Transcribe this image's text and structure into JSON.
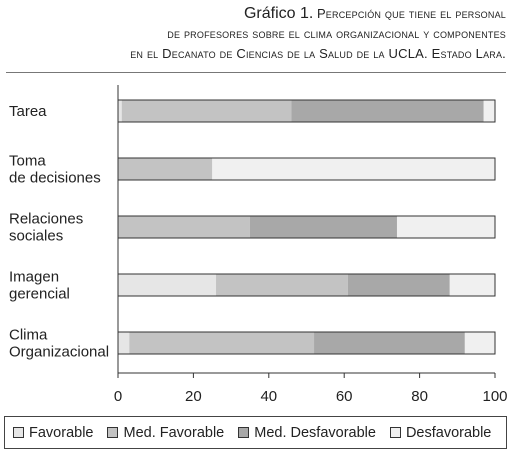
{
  "title": {
    "lead": "Gráfico 1.",
    "line1": "Percepción que tiene el personal",
    "line2": "de profesores sobre el clima organizacional y componentes",
    "line3": "en el Decanato de Ciencias de la Salud de la UCLA. Estado Lara."
  },
  "chart_data": {
    "type": "bar",
    "orientation": "horizontal",
    "stacked": true,
    "categories": [
      "Tarea",
      "Toma de decisiones",
      "Relaciones sociales",
      "Imagen gerencial",
      "Clima Organizacional"
    ],
    "category_lines": [
      [
        "Tarea"
      ],
      [
        "Toma",
        "de decisiones"
      ],
      [
        "Relaciones",
        "sociales"
      ],
      [
        "Imagen",
        "gerencial"
      ],
      [
        "Clima",
        "Organizacional"
      ]
    ],
    "series": [
      {
        "name": "Favorable",
        "color": "#e6e6e6",
        "values": [
          1,
          0,
          0,
          26,
          3
        ]
      },
      {
        "name": "Med. Favorable",
        "color": "#c3c3c3",
        "values": [
          45,
          25,
          35,
          35,
          49
        ]
      },
      {
        "name": "Med. Desfavorable",
        "color": "#a8a8a8",
        "values": [
          51,
          0,
          39,
          27,
          40
        ]
      },
      {
        "name": "Desfavorable",
        "color": "#f0f0f0",
        "values": [
          3,
          75,
          26,
          12,
          8
        ]
      }
    ],
    "x_ticks": [
      "0",
      "20",
      "40",
      "60",
      "80",
      "100"
    ],
    "xlim": [
      0,
      100
    ],
    "grid": false,
    "legend_position": "bottom"
  }
}
